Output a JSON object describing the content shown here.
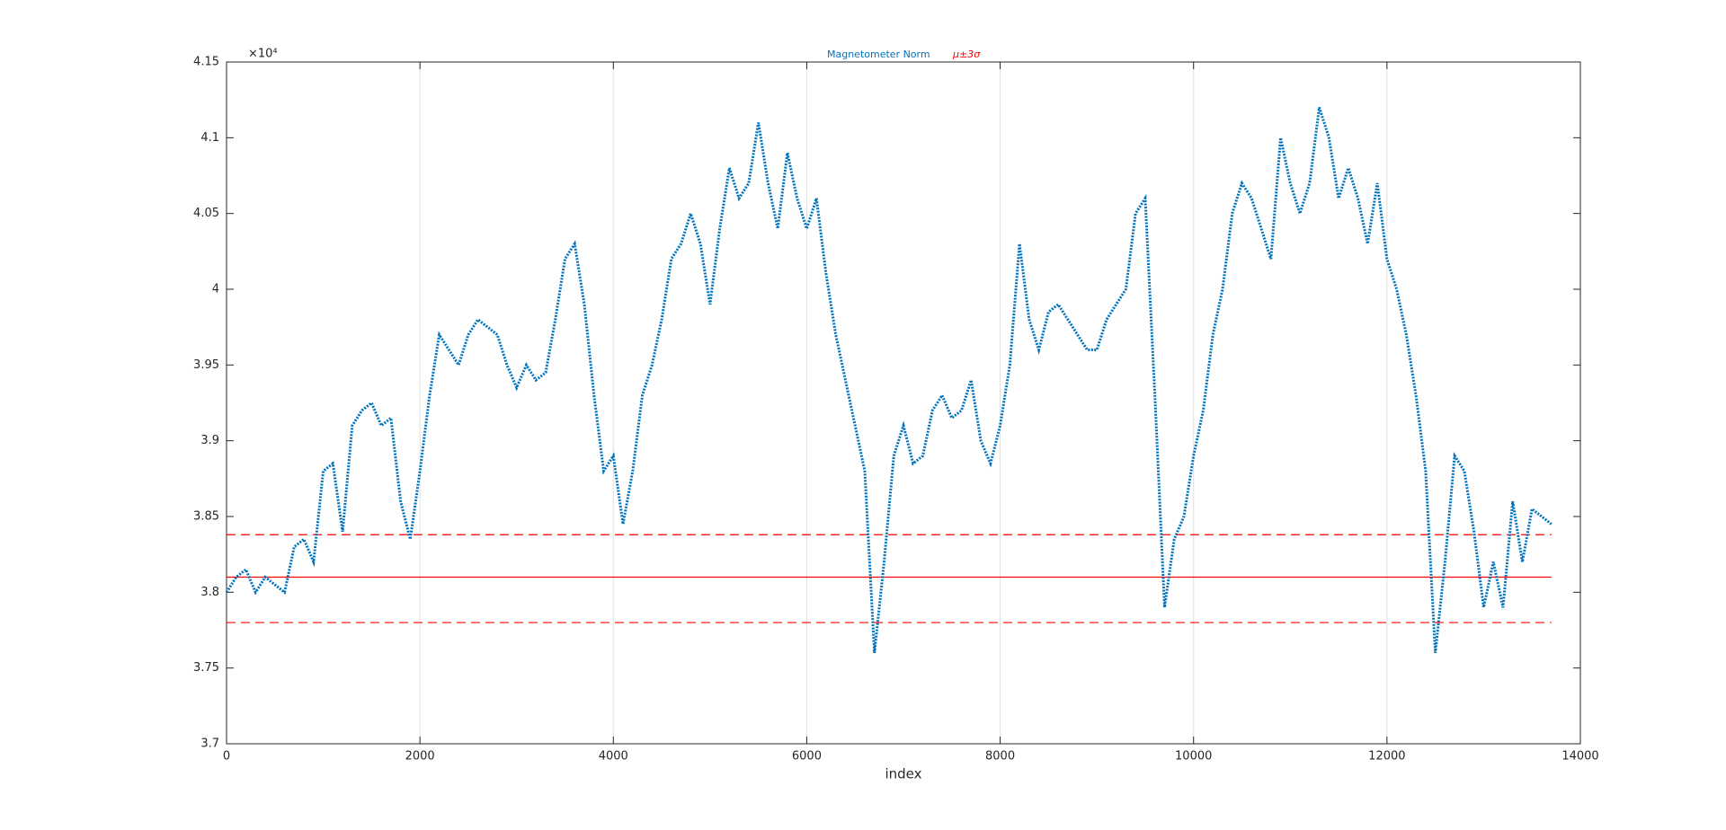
{
  "chart_data": {
    "type": "line",
    "xlabel": "index",
    "y_exponent_label": "×10⁴",
    "x": [
      0,
      100,
      200,
      300,
      400,
      500,
      600,
      700,
      800,
      900,
      1000,
      1100,
      1200,
      1300,
      1400,
      1500,
      1600,
      1700,
      1800,
      1900,
      2000,
      2100,
      2200,
      2300,
      2400,
      2500,
      2600,
      2700,
      2800,
      2900,
      3000,
      3100,
      3200,
      3300,
      3400,
      3500,
      3600,
      3700,
      3800,
      3900,
      4000,
      4100,
      4200,
      4300,
      4400,
      4500,
      4600,
      4700,
      4800,
      4900,
      5000,
      5100,
      5200,
      5300,
      5400,
      5500,
      5600,
      5700,
      5800,
      5900,
      6000,
      6100,
      6200,
      6300,
      6400,
      6500,
      6600,
      6700,
      6800,
      6900,
      7000,
      7100,
      7200,
      7300,
      7400,
      7500,
      7600,
      7700,
      7800,
      7900,
      8000,
      8100,
      8200,
      8300,
      8400,
      8500,
      8600,
      8700,
      8800,
      8900,
      9000,
      9100,
      9200,
      9300,
      9400,
      9500,
      9600,
      9700,
      9800,
      9900,
      10000,
      10100,
      10200,
      10300,
      10400,
      10500,
      10600,
      10700,
      10800,
      10900,
      11000,
      11100,
      11200,
      11300,
      11400,
      11500,
      11600,
      11700,
      11800,
      11900,
      12000,
      12100,
      12200,
      12300,
      12400,
      12500,
      12600,
      12700,
      12800,
      12900,
      13000,
      13100,
      13200,
      13300,
      13400,
      13500,
      13600,
      13700
    ],
    "series": [
      {
        "name": "Magnetometer Norm",
        "color": "#0072bd",
        "values": [
          3.8,
          3.81,
          3.815,
          3.8,
          3.81,
          3.805,
          3.8,
          3.83,
          3.835,
          3.82,
          3.88,
          3.885,
          3.84,
          3.91,
          3.92,
          3.925,
          3.91,
          3.915,
          3.86,
          3.835,
          3.88,
          3.93,
          3.97,
          3.96,
          3.95,
          3.97,
          3.98,
          3.975,
          3.97,
          3.95,
          3.935,
          3.95,
          3.94,
          3.945,
          3.98,
          4.02,
          4.03,
          3.99,
          3.93,
          3.88,
          3.89,
          3.845,
          3.88,
          3.93,
          3.95,
          3.98,
          4.02,
          4.03,
          4.05,
          4.03,
          3.99,
          4.04,
          4.08,
          4.06,
          4.07,
          4.11,
          4.07,
          4.04,
          4.09,
          4.06,
          4.04,
          4.06,
          4.01,
          3.97,
          3.94,
          3.91,
          3.88,
          3.76,
          3.82,
          3.89,
          3.91,
          3.885,
          3.89,
          3.92,
          3.93,
          3.915,
          3.92,
          3.94,
          3.9,
          3.885,
          3.91,
          3.95,
          4.03,
          3.98,
          3.96,
          3.985,
          3.99,
          3.98,
          3.97,
          3.96,
          3.96,
          3.98,
          3.99,
          4.0,
          4.05,
          4.06,
          3.93,
          3.79,
          3.835,
          3.85,
          3.89,
          3.92,
          3.97,
          4.0,
          4.05,
          4.07,
          4.06,
          4.04,
          4.02,
          4.1,
          4.07,
          4.05,
          4.07,
          4.12,
          4.1,
          4.06,
          4.08,
          4.06,
          4.03,
          4.07,
          4.02,
          4.0,
          3.97,
          3.93,
          3.88,
          3.76,
          3.82,
          3.89,
          3.88,
          3.84,
          3.79,
          3.82,
          3.79,
          3.86,
          3.82,
          3.855,
          3.85,
          3.845
        ]
      }
    ],
    "mu_sigma": {
      "name": "μ±3σ",
      "color": "#ff0000",
      "mean": 3.81,
      "upper": 3.838,
      "lower": 3.78,
      "x_end": 13700
    },
    "xlim": [
      0,
      14000
    ],
    "xticks": [
      0,
      2000,
      4000,
      6000,
      8000,
      10000,
      12000,
      14000
    ],
    "ylim": [
      3.7,
      4.15
    ],
    "yticks": [
      3.7,
      3.75,
      3.8,
      3.85,
      3.9,
      3.95,
      4,
      4.05,
      4.1,
      4.15
    ],
    "grid": "x"
  }
}
